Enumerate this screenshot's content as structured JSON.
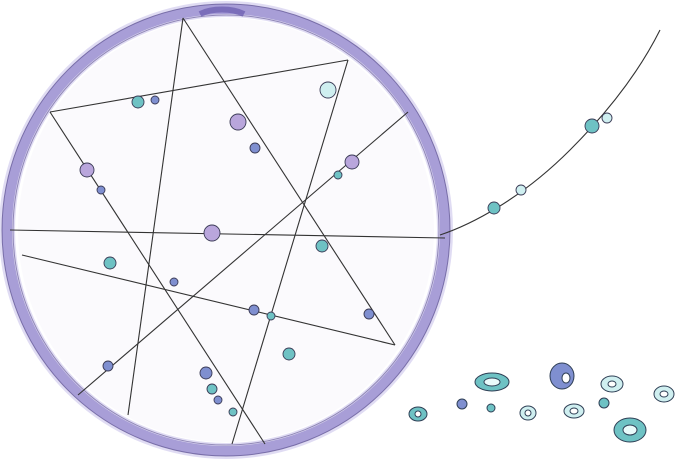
{
  "illustration": {
    "subject": "dreamcatcher-with-beads",
    "colors": {
      "hoop": "#9a8fcf",
      "hoop_dark": "#6f62b3",
      "hoop_light": "#c7c0ea",
      "string": "#333333",
      "bead_teal": "#6ec2c4",
      "bead_teal_dark": "#2f8f95",
      "bead_lavender": "#b9a6dc",
      "bead_blue": "#7f8fd0",
      "bead_light": "#cfeff0"
    }
  }
}
